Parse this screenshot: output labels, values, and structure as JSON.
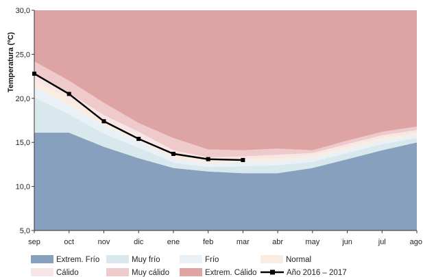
{
  "chart_data": {
    "type": "area",
    "title": "",
    "xlabel": "",
    "ylabel": "Temperatura (ºC)",
    "ylim": [
      5,
      30
    ],
    "yticks": [
      "5,0",
      "10,0",
      "15,0",
      "20,0",
      "25,0",
      "30,0"
    ],
    "categories": [
      "sep",
      "oct",
      "nov",
      "dic",
      "ene",
      "feb",
      "mar",
      "abr",
      "may",
      "jun",
      "jul",
      "ago"
    ],
    "grid": false,
    "legend_position": "bottom",
    "band_boundaries": [
      {
        "name": "Extrem. Frío",
        "values": [
          16.1,
          16.1,
          14.5,
          13.2,
          12.1,
          11.7,
          11.5,
          11.5,
          12.1,
          13.1,
          14.1,
          15.0
        ]
      },
      {
        "name": "Muy frío",
        "values": [
          20.1,
          18.2,
          16.0,
          14.4,
          12.7,
          12.2,
          12.3,
          12.4,
          12.8,
          13.8,
          14.8,
          15.5
        ]
      },
      {
        "name": "Frío",
        "values": [
          21.3,
          19.3,
          16.9,
          15.2,
          13.2,
          12.6,
          12.8,
          12.9,
          13.2,
          14.2,
          15.2,
          15.9
        ]
      },
      {
        "name": "Normal",
        "values": [
          22.0,
          20.0,
          17.5,
          15.7,
          13.6,
          12.9,
          13.1,
          13.2,
          13.5,
          14.5,
          15.5,
          16.1
        ]
      },
      {
        "name": "Cálido",
        "values": [
          22.7,
          20.6,
          18.1,
          16.2,
          14.1,
          13.3,
          13.4,
          13.6,
          13.8,
          14.8,
          15.8,
          16.4
        ]
      },
      {
        "name": "Muy cálido",
        "values": [
          24.2,
          22.0,
          19.5,
          17.2,
          15.5,
          14.2,
          14.1,
          14.3,
          14.1,
          15.2,
          16.2,
          16.8
        ]
      },
      {
        "name": "Extrem. Cálido",
        "values": [
          30,
          30,
          30,
          30,
          30,
          30,
          30,
          30,
          30,
          30,
          30,
          30
        ]
      }
    ],
    "series": [
      {
        "name": "Año 2016 – 2017",
        "x": [
          "sep",
          "oct",
          "nov",
          "dic",
          "ene",
          "feb",
          "mar"
        ],
        "values": [
          22.8,
          20.5,
          17.4,
          15.4,
          13.7,
          13.1,
          13.0
        ]
      }
    ],
    "colors": {
      "Extrem. Frío": "#86a0bd",
      "Muy frío": "#d8e8ed",
      "Frío": "#e9f0f6",
      "Normal": "#fbece1",
      "Cálido": "#f8e6e6",
      "Muy cálido": "#efcaca",
      "Extrem. Cálido": "#dea3a3",
      "Año 2016 – 2017": "#000000"
    }
  }
}
